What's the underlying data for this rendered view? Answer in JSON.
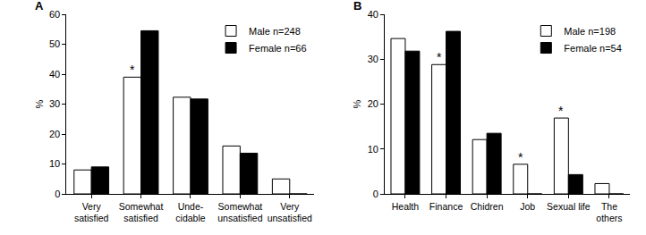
{
  "chart_data": [
    {
      "type": "bar",
      "title": "A",
      "y_label": "%",
      "categories": [
        "Very\nsatisfied",
        "Somewhat\nsatisfied",
        "Unde-\ncidable",
        "Somewhat\nunsatisfied",
        "Very\nunsatisfied"
      ],
      "series": [
        {
          "name": "Male n=248",
          "color": "#ffffff",
          "values": [
            8,
            39,
            32.3,
            16,
            5
          ]
        },
        {
          "name": "Female n=66",
          "color": "#000000",
          "values": [
            9,
            54.5,
            31.7,
            13.6,
            0
          ]
        }
      ],
      "ylim": [
        0,
        60
      ],
      "yticks": [
        0,
        10,
        20,
        30,
        40,
        50,
        60
      ],
      "grid": false,
      "legend": "upper right",
      "annotations": [
        {
          "text": "*",
          "x": 1,
          "y": 39,
          "series": "Male n=248"
        }
      ]
    },
    {
      "type": "bar",
      "title": "B",
      "y_label": "%",
      "categories": [
        "Health",
        "Finance",
        "Chidren",
        "Job",
        "Sexual life",
        "The\nothers"
      ],
      "series": [
        {
          "name": "Male n=198",
          "color": "#ffffff",
          "values": [
            34.6,
            28.8,
            12.1,
            6.6,
            16.9,
            2.3
          ]
        },
        {
          "name": "Female n=54",
          "color": "#000000",
          "values": [
            31.8,
            36.2,
            13.5,
            0,
            4.3,
            0
          ]
        }
      ],
      "ylim": [
        0,
        40
      ],
      "yticks": [
        0,
        10,
        20,
        30,
        40
      ],
      "grid": false,
      "legend": "upper right",
      "annotations": [
        {
          "text": "*",
          "x": 1,
          "y": 28.8,
          "series": "Male n=198"
        },
        {
          "text": "*",
          "x": 3,
          "y": 6.6,
          "series": "Male n=198"
        },
        {
          "text": "*",
          "x": 4,
          "y": 16.9,
          "series": "Male n=198"
        }
      ]
    }
  ]
}
